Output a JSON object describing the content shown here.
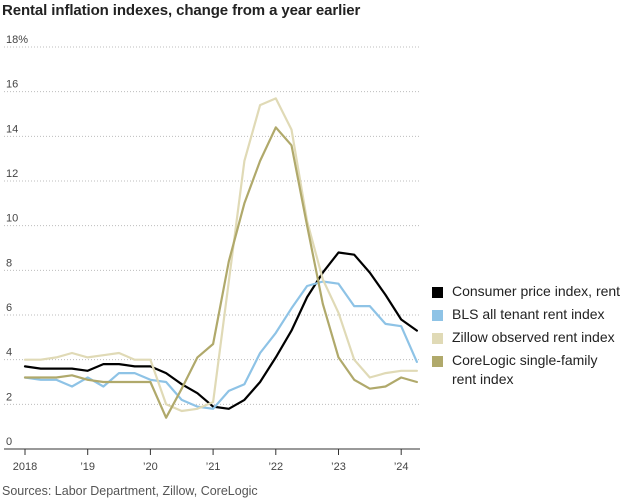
{
  "chart_data": {
    "type": "line",
    "title": "Rental inflation indexes, change from a year earlier",
    "source": "Sources: Labor Department, Zillow, CoreLogic",
    "y_ticks": [
      {
        "value": 0,
        "label": "0"
      },
      {
        "value": 2,
        "label": "2"
      },
      {
        "value": 4,
        "label": "4"
      },
      {
        "value": 6,
        "label": "6"
      },
      {
        "value": 8,
        "label": "8"
      },
      {
        "value": 10,
        "label": "10"
      },
      {
        "value": 12,
        "label": "12"
      },
      {
        "value": 14,
        "label": "14"
      },
      {
        "value": 16,
        "label": "16"
      },
      {
        "value": 18,
        "label": "18%"
      }
    ],
    "x_ticks": [
      {
        "value": 2018,
        "label": "2018"
      },
      {
        "value": 2019,
        "label": "’19"
      },
      {
        "value": 2020,
        "label": "’20"
      },
      {
        "value": 2021,
        "label": "’21"
      },
      {
        "value": 2022,
        "label": "’22"
      },
      {
        "value": 2023,
        "label": "’23"
      },
      {
        "value": 2024,
        "label": "’24"
      }
    ],
    "xlim": [
      2018,
      2024.3
    ],
    "ylim": [
      0,
      18
    ],
    "grid": "horizontal dotted",
    "legend_position": "right",
    "x": [
      2018.0,
      2018.25,
      2018.5,
      2018.75,
      2019.0,
      2019.25,
      2019.5,
      2019.75,
      2020.0,
      2020.25,
      2020.5,
      2020.75,
      2021.0,
      2021.25,
      2021.5,
      2021.75,
      2022.0,
      2022.25,
      2022.5,
      2022.75,
      2023.0,
      2023.25,
      2023.5,
      2023.75,
      2024.0,
      2024.25
    ],
    "series": [
      {
        "name": "Consumer price index, rent",
        "color": "#000000",
        "values": [
          3.7,
          3.6,
          3.6,
          3.6,
          3.5,
          3.8,
          3.8,
          3.7,
          3.7,
          3.4,
          2.9,
          2.5,
          1.9,
          1.8,
          2.2,
          3.0,
          4.1,
          5.3,
          6.8,
          7.9,
          8.8,
          8.7,
          7.9,
          6.9,
          5.8,
          5.3
        ]
      },
      {
        "name": "BLS all tenant rent index",
        "color": "#8ec3e6",
        "values": [
          3.2,
          3.1,
          3.1,
          2.8,
          3.2,
          2.8,
          3.4,
          3.4,
          3.1,
          3.0,
          2.2,
          1.9,
          1.8,
          2.6,
          2.9,
          4.3,
          5.2,
          6.3,
          7.3,
          7.5,
          7.4,
          6.4,
          6.4,
          5.6,
          5.5,
          3.9
        ]
      },
      {
        "name": "Zillow observed rent index",
        "color": "#e0dab6",
        "values": [
          4.0,
          4.0,
          4.1,
          4.3,
          4.1,
          4.2,
          4.3,
          4.0,
          4.0,
          2.0,
          1.7,
          1.8,
          2.1,
          7.5,
          12.9,
          15.4,
          15.7,
          14.3,
          10.2,
          7.6,
          6.1,
          4.0,
          3.2,
          3.4,
          3.5,
          3.5
        ]
      },
      {
        "name": "CoreLogic single-family rent index",
        "color": "#b0a96b",
        "values": [
          3.2,
          3.2,
          3.2,
          3.3,
          3.1,
          3.0,
          3.0,
          3.0,
          3.0,
          1.4,
          2.7,
          4.1,
          4.7,
          8.4,
          11.0,
          12.9,
          14.4,
          13.6,
          10.0,
          6.5,
          4.1,
          3.1,
          2.7,
          2.8,
          3.2,
          3.0
        ]
      }
    ]
  }
}
